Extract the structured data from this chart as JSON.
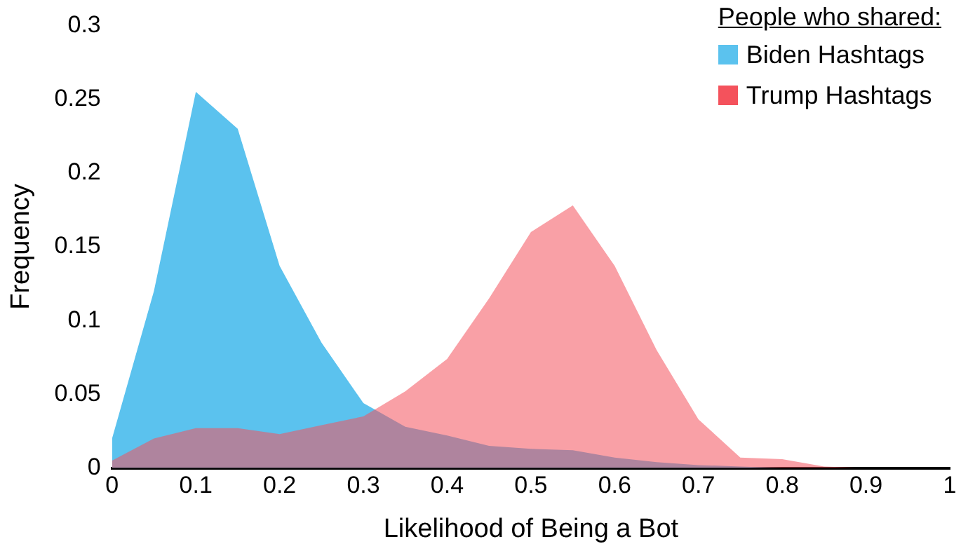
{
  "chart_data": {
    "type": "area",
    "xlabel": "Likelihood of Being a Bot",
    "ylabel": "Frequency",
    "legend_title": "People who shared:",
    "legend": "top right",
    "grid": false,
    "marker": "none",
    "x": [
      0,
      0.05,
      0.1,
      0.15,
      0.2,
      0.25,
      0.3,
      0.35,
      0.4,
      0.45,
      0.5,
      0.55,
      0.6,
      0.65,
      0.7,
      0.75,
      0.8,
      0.85,
      0.9,
      0.95,
      1
    ],
    "xlim": [
      0,
      1
    ],
    "xticks": [
      0,
      0.1,
      0.2,
      0.3,
      0.4,
      0.5,
      0.6,
      0.7,
      0.8,
      0.9,
      1
    ],
    "ylim": [
      0,
      0.3
    ],
    "yticks": [
      0,
      0.05,
      0.1,
      0.15,
      0.2,
      0.25,
      0.3
    ],
    "series": [
      {
        "name": "Biden Hashtags",
        "color": "#5bc2ee",
        "values": [
          0.02,
          0.12,
          0.255,
          0.23,
          0.137,
          0.085,
          0.044,
          0.028,
          0.022,
          0.015,
          0.013,
          0.012,
          0.007,
          0.004,
          0.002,
          0.001,
          0,
          0,
          0,
          0,
          0
        ]
      },
      {
        "name": "Trump Hashtags",
        "color": "#f4525c",
        "values": [
          0.005,
          0.02,
          0.027,
          0.027,
          0.023,
          0.029,
          0.035,
          0.052,
          0.074,
          0.115,
          0.16,
          0.178,
          0.137,
          0.08,
          0.033,
          0.007,
          0.006,
          0.001,
          0,
          0,
          0
        ]
      }
    ]
  }
}
